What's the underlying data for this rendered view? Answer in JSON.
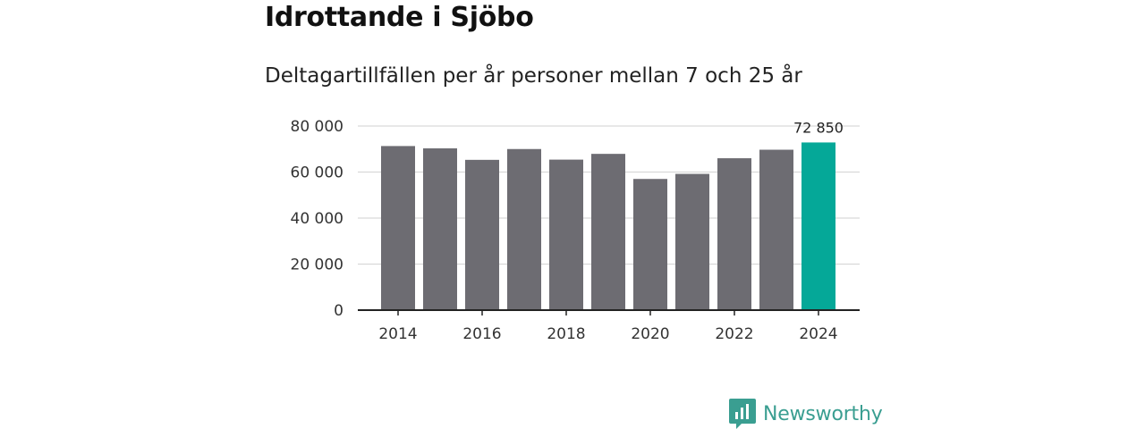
{
  "title": "Idrottande i Sjöbo",
  "subtitle": "Deltagartillfällen per år personer mellan 7 och 25 år",
  "brand": {
    "name": "Newsworthy",
    "color": "#3a9e91"
  },
  "colors": {
    "bar": "#6d6c72",
    "highlight": "#05a898",
    "grid": "#d9d9d9",
    "axis": "#222222"
  },
  "chart_data": {
    "type": "bar",
    "title": "Idrottande i Sjöbo",
    "subtitle": "Deltagartillfällen per år personer mellan 7 och 25 år",
    "xlabel": "",
    "ylabel": "",
    "categories": [
      "2014",
      "2015",
      "2016",
      "2017",
      "2018",
      "2019",
      "2020",
      "2021",
      "2022",
      "2023",
      "2024"
    ],
    "values": [
      71300,
      70300,
      65300,
      70000,
      65400,
      67900,
      57000,
      59200,
      66000,
      69700,
      72850
    ],
    "highlight_index": 10,
    "ylim": [
      0,
      80000
    ],
    "yticks": [
      0,
      20000,
      40000,
      60000,
      80000
    ],
    "ytick_labels": [
      "0",
      "20 000",
      "40 000",
      "60 000",
      "80 000"
    ],
    "xtick_labels": [
      "2014",
      "2016",
      "2018",
      "2020",
      "2022",
      "2024"
    ],
    "data_labels": [
      {
        "category": "2024",
        "text": "72 850"
      }
    ],
    "grid": true
  }
}
